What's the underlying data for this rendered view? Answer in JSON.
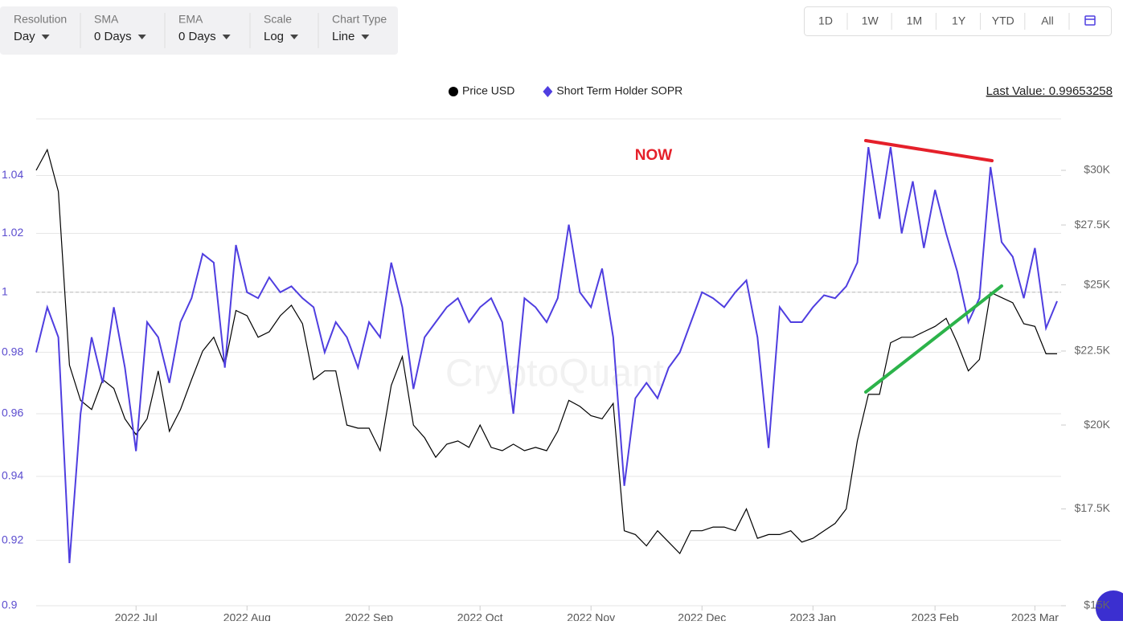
{
  "toolbar": [
    {
      "label": "Resolution",
      "value": "Day"
    },
    {
      "label": "SMA",
      "value": "0 Days"
    },
    {
      "label": "EMA",
      "value": "0 Days"
    },
    {
      "label": "Scale",
      "value": "Log"
    },
    {
      "label": "Chart Type",
      "value": "Line"
    }
  ],
  "range_buttons": [
    "1D",
    "1W",
    "1M",
    "1Y",
    "YTD",
    "All"
  ],
  "last_value": "Last Value: 0.99653258",
  "watermark": "CryptoQuant",
  "chart_data": {
    "type": "line",
    "annotation": "NOW",
    "log_scale": true,
    "grid": true,
    "reference_line": 1,
    "categories": [
      null,
      null,
      null,
      null,
      null,
      null,
      null,
      null,
      null,
      "2022 Jul",
      null,
      null,
      null,
      null,
      null,
      null,
      null,
      null,
      null,
      "2022 Aug",
      null,
      null,
      null,
      null,
      null,
      null,
      null,
      null,
      null,
      null,
      "2022 Sep",
      null,
      null,
      null,
      null,
      null,
      null,
      null,
      null,
      null,
      "2022 Oct",
      null,
      null,
      null,
      null,
      null,
      null,
      null,
      null,
      null,
      "2022 Nov",
      null,
      null,
      null,
      null,
      null,
      null,
      null,
      null,
      null,
      "2022 Dec",
      null,
      null,
      null,
      null,
      null,
      null,
      null,
      null,
      null,
      "2023 Jan",
      null,
      null,
      null,
      null,
      null,
      null,
      null,
      null,
      null,
      null,
      "2023 Feb",
      null,
      null,
      null,
      null,
      null,
      null,
      null,
      null,
      "2023 Mar",
      null,
      null
    ],
    "ylim": [
      0.9,
      1.06
    ],
    "yticks": [
      0.9,
      0.92,
      0.94,
      0.96,
      0.98,
      1,
      1.02,
      1.04
    ],
    "y2lim": [
      15000,
      32560
    ],
    "y2ticks": [
      {
        "value": 15000,
        "label": "$15K"
      },
      {
        "value": 17500,
        "label": "$17.5K"
      },
      {
        "value": 20000,
        "label": "$20K"
      },
      {
        "value": 22500,
        "label": "$22.5K"
      },
      {
        "value": 25000,
        "label": "$25K"
      },
      {
        "value": 27500,
        "label": "$27.5K"
      },
      {
        "value": 30000,
        "label": "$30K"
      }
    ],
    "series": [
      {
        "name": "Price USD",
        "color": "#000000",
        "axis": "y2",
        "values": [
          30000,
          31000,
          29000,
          22000,
          20800,
          20500,
          21500,
          21200,
          20200,
          19700,
          20200,
          21800,
          19800,
          20500,
          21500,
          22500,
          23000,
          22000,
          24000,
          23800,
          23000,
          23200,
          23800,
          24200,
          23500,
          21500,
          21800,
          21800,
          20000,
          19900,
          19900,
          19200,
          21300,
          22300,
          20000,
          19600,
          19000,
          19400,
          19500,
          19300,
          20000,
          19300,
          19200,
          19400,
          19200,
          19300,
          19200,
          19800,
          20800,
          20600,
          20300,
          20200,
          20700,
          16900,
          16800,
          16500,
          16900,
          16600,
          16300,
          16900,
          16900,
          17000,
          17000,
          16900,
          17500,
          16700,
          16800,
          16800,
          16900,
          16600,
          16700,
          16900,
          17100,
          17500,
          19500,
          21000,
          21000,
          22800,
          23000,
          23000,
          23200,
          23400,
          23700,
          22800,
          21800,
          22200,
          24700,
          24500,
          24300,
          23500,
          23400,
          22400,
          22400
        ]
      },
      {
        "name": "Short Term Holder SOPR",
        "color": "#4f3ee0",
        "axis": "y",
        "values": [
          0.98,
          0.995,
          0.985,
          0.913,
          0.96,
          0.985,
          0.97,
          0.995,
          0.975,
          0.948,
          0.99,
          0.985,
          0.97,
          0.99,
          0.998,
          1.013,
          1.01,
          0.975,
          1.016,
          1.0,
          0.998,
          1.005,
          1.0,
          1.002,
          0.998,
          0.995,
          0.98,
          0.99,
          0.985,
          0.975,
          0.99,
          0.985,
          1.01,
          0.995,
          0.968,
          0.985,
          0.99,
          0.995,
          0.998,
          0.99,
          0.995,
          0.998,
          0.99,
          0.96,
          0.998,
          0.995,
          0.99,
          0.998,
          1.023,
          1.0,
          0.995,
          1.008,
          0.985,
          0.937,
          0.965,
          0.97,
          0.965,
          0.975,
          0.98,
          0.99,
          1.0,
          0.998,
          0.995,
          1.0,
          1.004,
          0.985,
          0.949,
          0.995,
          0.99,
          0.99,
          0.995,
          0.999,
          0.998,
          1.002,
          1.01,
          1.05,
          1.025,
          1.05,
          1.02,
          1.038,
          1.015,
          1.035,
          1.02,
          1.007,
          0.99,
          0.998,
          1.043,
          1.017,
          1.012,
          0.998,
          1.015,
          0.988,
          0.997
        ]
      }
    ]
  }
}
